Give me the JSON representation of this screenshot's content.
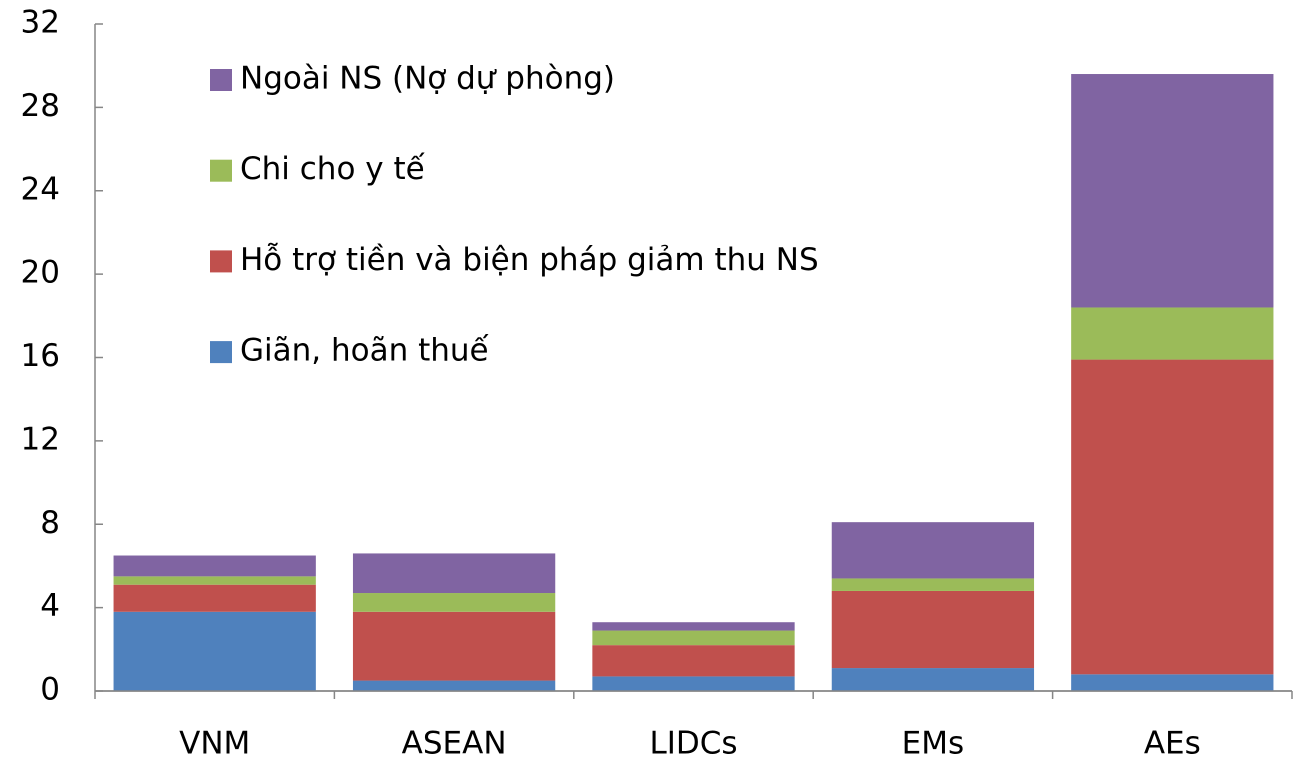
{
  "chart_data": {
    "type": "stacked_bar",
    "categories": [
      "VNM",
      "ASEAN",
      "LIDCs",
      "EMs",
      "AEs"
    ],
    "series": [
      {
        "name": "Giãn, hoãn thuế",
        "color": "#4f81bd",
        "values": [
          3.8,
          0.5,
          0.7,
          1.1,
          0.8
        ]
      },
      {
        "name": "Hỗ trợ tiền và biện pháp giảm thu NS",
        "color": "#c0504d",
        "values": [
          1.3,
          3.3,
          1.5,
          3.7,
          15.1
        ]
      },
      {
        "name": "Chi cho y tế",
        "color": "#9bbb59",
        "values": [
          0.4,
          0.9,
          0.7,
          0.6,
          2.5
        ]
      },
      {
        "name": "Ngoài NS (Nợ dự phòng)",
        "color": "#8064a2",
        "values": [
          1.0,
          1.9,
          0.4,
          2.7,
          11.2
        ]
      }
    ],
    "ylim": [
      0,
      32
    ],
    "yticks": [
      0,
      4,
      8,
      12,
      16,
      20,
      24,
      28,
      32
    ],
    "legend": "upper left"
  }
}
